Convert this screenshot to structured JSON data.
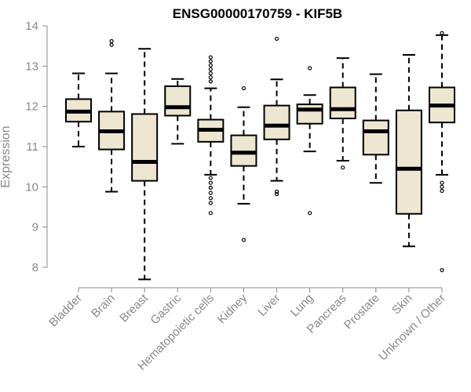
{
  "chart_data": {
    "type": "boxplot",
    "title": "ENSG00000170759 - KIF5B",
    "xlabel": "",
    "ylabel": "Expression",
    "ylim": [
      7.6,
      14.05
    ],
    "yticks": [
      8,
      9,
      10,
      11,
      12,
      13,
      14
    ],
    "yticklabels": [
      "8",
      "9",
      "10",
      "11",
      "12",
      "13",
      "14"
    ],
    "box_fill": "#EDE6D0",
    "categories": [
      "Bladder",
      "Brain",
      "Breast",
      "Gastric",
      "Hematopoietic cells",
      "Kidney",
      "Liver",
      "Lung",
      "Pancreas",
      "Prostate",
      "Skin",
      "Unknown / Other"
    ],
    "boxes": [
      {
        "whislo": 11.0,
        "q1": 11.62,
        "med": 11.87,
        "q3": 12.18,
        "whishi": 12.82,
        "fliers": []
      },
      {
        "whislo": 9.88,
        "q1": 10.93,
        "med": 11.38,
        "q3": 11.87,
        "whishi": 12.82,
        "fliers": [
          13.53,
          13.62
        ]
      },
      {
        "whislo": 7.7,
        "q1": 10.15,
        "med": 10.62,
        "q3": 11.81,
        "whishi": 13.43,
        "fliers": []
      },
      {
        "whislo": 11.07,
        "q1": 11.77,
        "med": 11.98,
        "q3": 12.5,
        "whishi": 12.68,
        "fliers": []
      },
      {
        "whislo": 10.3,
        "q1": 11.12,
        "med": 11.42,
        "q3": 11.67,
        "whishi": 12.45,
        "fliers": [
          9.35,
          9.6,
          9.72,
          9.85,
          9.98,
          10.1,
          10.22,
          12.62,
          12.72,
          12.82,
          12.92,
          13.02,
          13.12,
          13.22
        ]
      },
      {
        "whislo": 9.58,
        "q1": 10.52,
        "med": 10.85,
        "q3": 11.28,
        "whishi": 11.98,
        "fliers": [
          8.68,
          12.45
        ]
      },
      {
        "whislo": 10.15,
        "q1": 11.18,
        "med": 11.52,
        "q3": 12.02,
        "whishi": 12.67,
        "fliers": [
          9.82,
          9.88,
          13.68
        ]
      },
      {
        "whislo": 10.88,
        "q1": 11.57,
        "med": 11.92,
        "q3": 12.05,
        "whishi": 12.28,
        "fliers": [
          9.35,
          12.95
        ]
      },
      {
        "whislo": 10.65,
        "q1": 11.7,
        "med": 11.93,
        "q3": 12.47,
        "whishi": 13.2,
        "fliers": [
          10.48
        ]
      },
      {
        "whislo": 10.1,
        "q1": 10.8,
        "med": 11.38,
        "q3": 11.65,
        "whishi": 12.8,
        "fliers": []
      },
      {
        "whislo": 8.52,
        "q1": 9.33,
        "med": 10.45,
        "q3": 11.9,
        "whishi": 13.28,
        "fliers": []
      },
      {
        "whislo": 10.3,
        "q1": 11.6,
        "med": 12.02,
        "q3": 12.47,
        "whishi": 13.77,
        "fliers": [
          7.93,
          9.9,
          10.0,
          10.1,
          13.82
        ]
      }
    ]
  }
}
